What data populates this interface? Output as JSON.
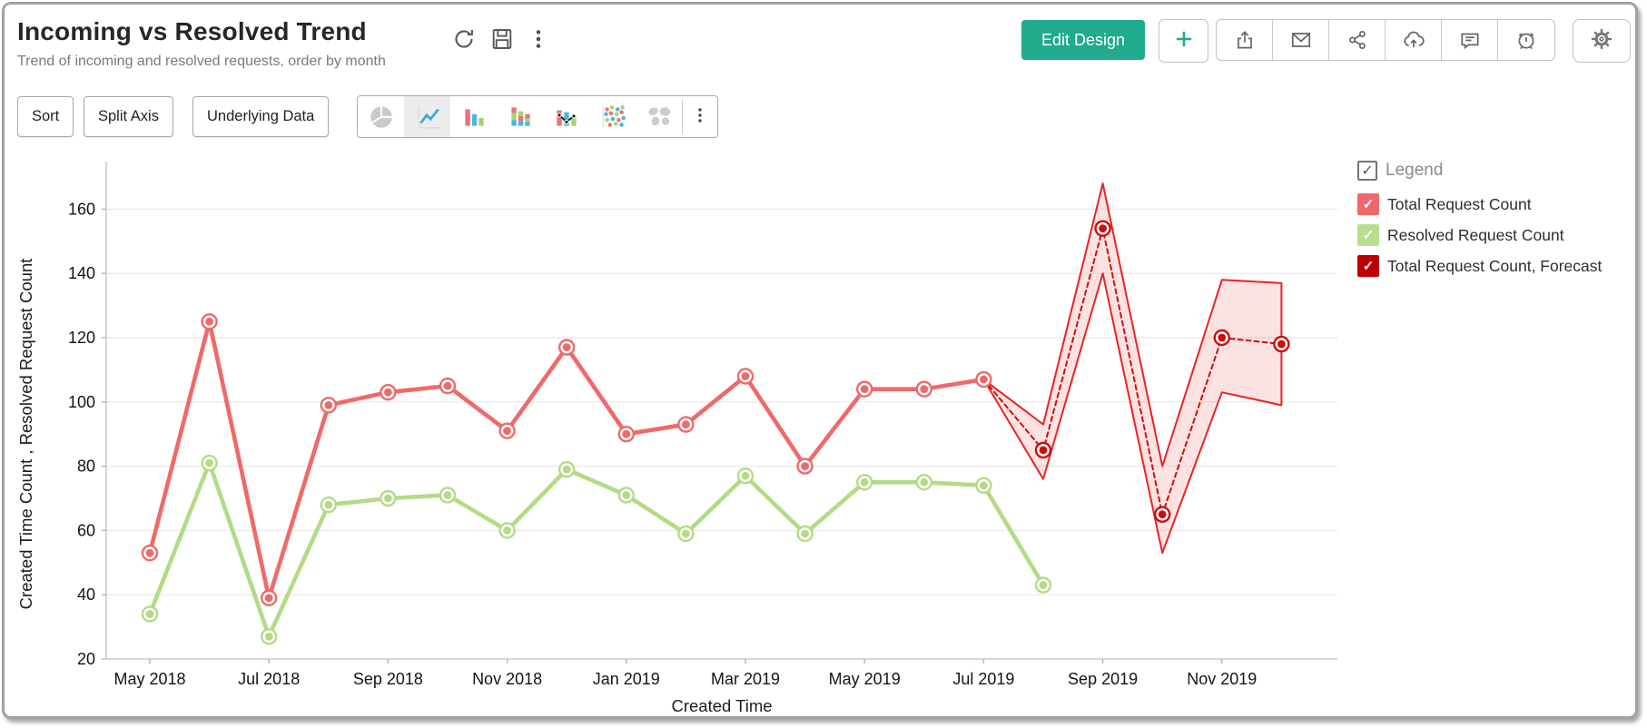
{
  "header": {
    "title": "Incoming vs Resolved Trend",
    "subtitle": "Trend of incoming and resolved requests, order by month",
    "title_icons": [
      "refresh",
      "save",
      "kebab"
    ],
    "edit_design_label": "Edit Design",
    "plus_icon": "plus",
    "action_icons": [
      "export",
      "email",
      "share",
      "publish",
      "comment",
      "alert"
    ],
    "settings_icon": "gear",
    "accent_color": "#1fab8c"
  },
  "toolbar": {
    "buttons": [
      {
        "label": "Sort"
      },
      {
        "label": "Split Axis"
      },
      {
        "label": "Underlying Data"
      }
    ],
    "chart_types": [
      "pie",
      "line",
      "bar",
      "stacked-bar",
      "combo",
      "scatter",
      "map"
    ],
    "selected_chart_type": "line",
    "overflow_icon": "kebab"
  },
  "legend": {
    "master": {
      "label": "Legend",
      "checked": true
    },
    "items": [
      {
        "label": "Total Request Count",
        "color": "#f0696a"
      },
      {
        "label": "Resolved Request Count",
        "color": "#b6df8e"
      },
      {
        "label": "Total Request Count, Forecast",
        "color": "#c00000"
      }
    ]
  },
  "chart_data": {
    "type": "line",
    "title": "Incoming vs Resolved Trend",
    "xlabel": "Created Time",
    "ylabel": "Created Time Count , Resolved Request Count",
    "ylim": [
      20,
      176
    ],
    "yticks": [
      20,
      40,
      60,
      80,
      100,
      120,
      140,
      160
    ],
    "grid": "horizontal",
    "legend_position": "right",
    "x": [
      "May 2018",
      "Jun 2018",
      "Jul 2018",
      "Aug 2018",
      "Sep 2018",
      "Oct 2018",
      "Nov 2018",
      "Dec 2018",
      "Jan 2019",
      "Feb 2019",
      "Mar 2019",
      "Apr 2019",
      "May 2019",
      "Jun 2019",
      "Jul 2019",
      "Aug 2019",
      "Sep 2019",
      "Oct 2019",
      "Nov 2019",
      "Dec 2019"
    ],
    "x_tick_labels": [
      "May 2018",
      "Jul 2018",
      "Sep 2018",
      "Nov 2018",
      "Jan 2019",
      "Mar 2019",
      "May 2019",
      "Jul 2019",
      "Sep 2019",
      "Nov 2019"
    ],
    "series": [
      {
        "name": "Total Request Count",
        "color": "#f0696a",
        "style": "solid",
        "values": [
          53,
          125,
          39,
          99,
          103,
          105,
          91,
          117,
          90,
          93,
          108,
          80,
          104,
          104,
          107,
          null,
          null,
          null,
          null,
          null
        ]
      },
      {
        "name": "Resolved Request Count",
        "color": "#b3db86",
        "style": "solid",
        "values": [
          34,
          81,
          27,
          68,
          70,
          71,
          60,
          79,
          71,
          59,
          77,
          59,
          75,
          75,
          74,
          43,
          null,
          null,
          null,
          null
        ]
      },
      {
        "name": "Total Request Count, Forecast",
        "color": "#cc0d0e",
        "style": "dashed",
        "marker_from_index": 15,
        "values": [
          null,
          null,
          null,
          null,
          null,
          null,
          null,
          null,
          null,
          null,
          null,
          null,
          null,
          null,
          107,
          85,
          154,
          65,
          120,
          118
        ]
      }
    ],
    "forecast_band": {
      "start_index": 14,
      "edge_color": "#ea2323",
      "fill_color": "rgba(240,50,50,0.14)",
      "upper": [
        107,
        93,
        168,
        80,
        138,
        137
      ],
      "lower": [
        107,
        76,
        140,
        53,
        103,
        99
      ]
    }
  }
}
